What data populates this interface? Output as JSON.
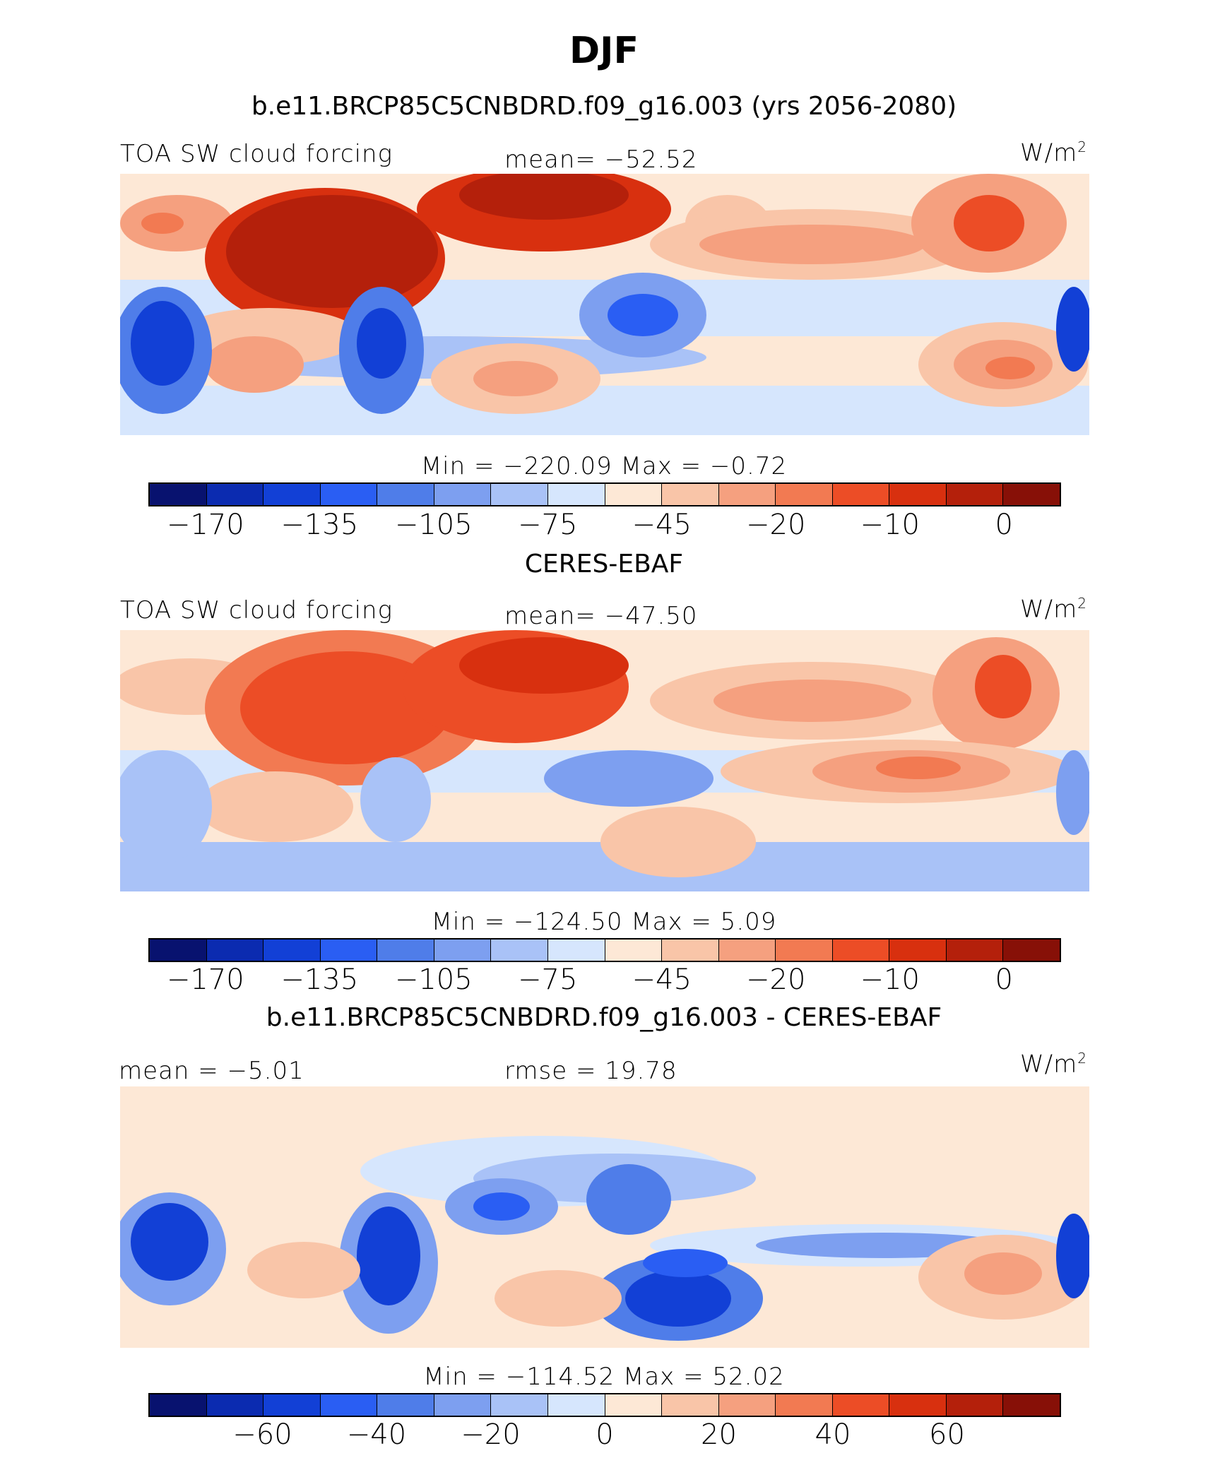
{
  "title": "DJF",
  "colorbar_colors": [
    "#08126f",
    "#0b2bb0",
    "#1240d6",
    "#2a5ef3",
    "#4f7de9",
    "#7d9ff0",
    "#a9c2f7",
    "#d6e6fd",
    "#fde8d6",
    "#f9c5a8",
    "#f5a07f",
    "#f27a52",
    "#ec4d26",
    "#d8300f",
    "#b4200b",
    "#871007"
  ],
  "panels": [
    {
      "title": "b.e11.BRCP85C5CNBDRD.f09_g16.003 (yrs 2056-2080)",
      "left_label": "TOA SW cloud forcing",
      "center_label": "mean= −52.52",
      "unit": "W/m",
      "unit_sup": "2",
      "minmax": "Min  =  −220.09  Max  =   −0.72",
      "ticks": [
        "−170",
        "−135",
        "−105",
        "−75",
        "−45",
        "−20",
        "−10",
        "0"
      ]
    },
    {
      "title": "CERES-EBAF",
      "left_label": "TOA SW cloud forcing",
      "center_label": "mean= −47.50",
      "unit": "W/m",
      "unit_sup": "2",
      "minmax": "Min  =  −124.50  Max  =     5.09",
      "ticks": [
        "−170",
        "−135",
        "−105",
        "−75",
        "−45",
        "−20",
        "−10",
        "0"
      ]
    },
    {
      "title": "b.e11.BRCP85C5CNBDRD.f09_g16.003 - CERES-EBAF",
      "left_label": "mean =   −5.01",
      "center_label": "rmse =   19.78",
      "unit": "W/m",
      "unit_sup": "2",
      "minmax": "Min  =  −114.52  Max  =   52.02",
      "ticks": [
        "−60",
        "−40",
        "−20",
        "0",
        "20",
        "40",
        "60"
      ]
    }
  ]
}
